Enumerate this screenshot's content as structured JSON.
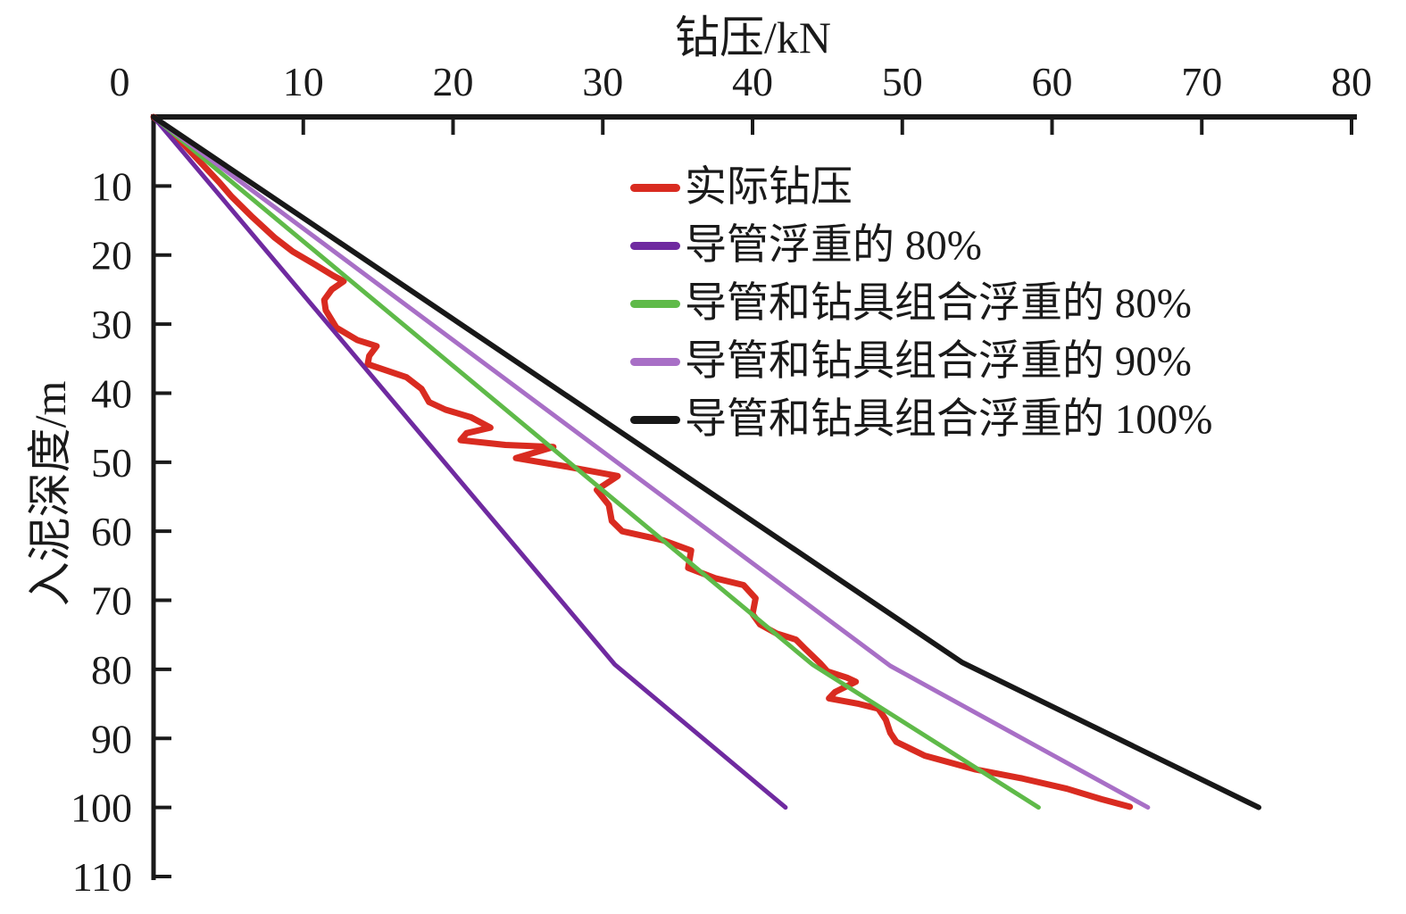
{
  "chart_data": {
    "type": "line",
    "title": "",
    "xlabel": "钻压/kN",
    "ylabel": "入泥深度/m",
    "x_axis": {
      "min": 0,
      "max": 80,
      "ticks": [
        0,
        10,
        20,
        30,
        40,
        50,
        60,
        70,
        80
      ],
      "position": "top"
    },
    "y_axis": {
      "min": 0,
      "max": 110,
      "ticks": [
        10,
        20,
        30,
        40,
        50,
        60,
        70,
        80,
        90,
        100,
        110
      ],
      "position": "left",
      "inverted": true
    },
    "grid": false,
    "legend_position": "inside-upper-right",
    "series": [
      {
        "name": "实际钻压",
        "color": "#d92b20",
        "width": 7,
        "points": [
          [
            0,
            0
          ],
          [
            1.6,
            3
          ],
          [
            3.1,
            6.5
          ],
          [
            4.4,
            9.5
          ],
          [
            5.2,
            11.5
          ],
          [
            6.6,
            14.5
          ],
          [
            8.1,
            17.5
          ],
          [
            9.3,
            19.5
          ],
          [
            10.8,
            21.4
          ],
          [
            12.0,
            23.0
          ],
          [
            12.7,
            23.8
          ],
          [
            11.9,
            25.0
          ],
          [
            11.4,
            26.5
          ],
          [
            11.5,
            28.0
          ],
          [
            12.2,
            30.5
          ],
          [
            13.6,
            32.3
          ],
          [
            14.9,
            33.2
          ],
          [
            14.4,
            34.6
          ],
          [
            14.3,
            35.8
          ],
          [
            15.4,
            36.6
          ],
          [
            16.9,
            37.7
          ],
          [
            17.9,
            39.4
          ],
          [
            18.4,
            41.3
          ],
          [
            19.5,
            42.4
          ],
          [
            21.2,
            43.5
          ],
          [
            22.5,
            45.0
          ],
          [
            20.9,
            45.8
          ],
          [
            20.5,
            46.8
          ],
          [
            23.5,
            47.5
          ],
          [
            26.7,
            47.8
          ],
          [
            24.2,
            49.4
          ],
          [
            27.5,
            50.6
          ],
          [
            31.0,
            52.0
          ],
          [
            29.6,
            54.0
          ],
          [
            30.4,
            56.2
          ],
          [
            30.6,
            58.5
          ],
          [
            31.3,
            60.0
          ],
          [
            34.0,
            61.3
          ],
          [
            35.9,
            62.8
          ],
          [
            35.7,
            65.3
          ],
          [
            37.5,
            66.8
          ],
          [
            39.4,
            67.8
          ],
          [
            40.2,
            69.7
          ],
          [
            40.0,
            72.0
          ],
          [
            40.5,
            73.5
          ],
          [
            41.6,
            74.8
          ],
          [
            42.9,
            75.7
          ],
          [
            43.5,
            77.0
          ],
          [
            44.5,
            79.1
          ],
          [
            45.0,
            80.3
          ],
          [
            46.3,
            81.2
          ],
          [
            46.9,
            81.8
          ],
          [
            45.5,
            83.3
          ],
          [
            45.1,
            84.2
          ],
          [
            47.1,
            85.0
          ],
          [
            48.4,
            85.7
          ],
          [
            48.9,
            87.3
          ],
          [
            49.2,
            89.2
          ],
          [
            49.6,
            90.5
          ],
          [
            51.5,
            92.5
          ],
          [
            54.9,
            94.5
          ],
          [
            58.0,
            95.8
          ],
          [
            61.0,
            97.3
          ],
          [
            63.3,
            98.8
          ],
          [
            65.2,
            99.9
          ]
        ]
      },
      {
        "name": "导管浮重的 80%",
        "color": "#6f2aa0",
        "width": 5,
        "points": [
          [
            0,
            0
          ],
          [
            30.8,
            79.3
          ],
          [
            42.2,
            100
          ]
        ]
      },
      {
        "name": "导管和钻具组合浮重的 80%",
        "color": "#5fba49",
        "width": 5,
        "points": [
          [
            0,
            0
          ],
          [
            44.0,
            79.3
          ],
          [
            59.1,
            100
          ]
        ]
      },
      {
        "name": "导管和钻具组合浮重的 90%",
        "color": "#a86fc6",
        "width": 5,
        "points": [
          [
            0,
            0
          ],
          [
            49.2,
            79.5
          ],
          [
            66.4,
            100
          ]
        ]
      },
      {
        "name": "导管和钻具组合浮重的 100%",
        "color": "#181818",
        "width": 6,
        "points": [
          [
            0,
            0
          ],
          [
            54.0,
            79.0
          ],
          [
            73.8,
            100
          ]
        ]
      }
    ]
  }
}
